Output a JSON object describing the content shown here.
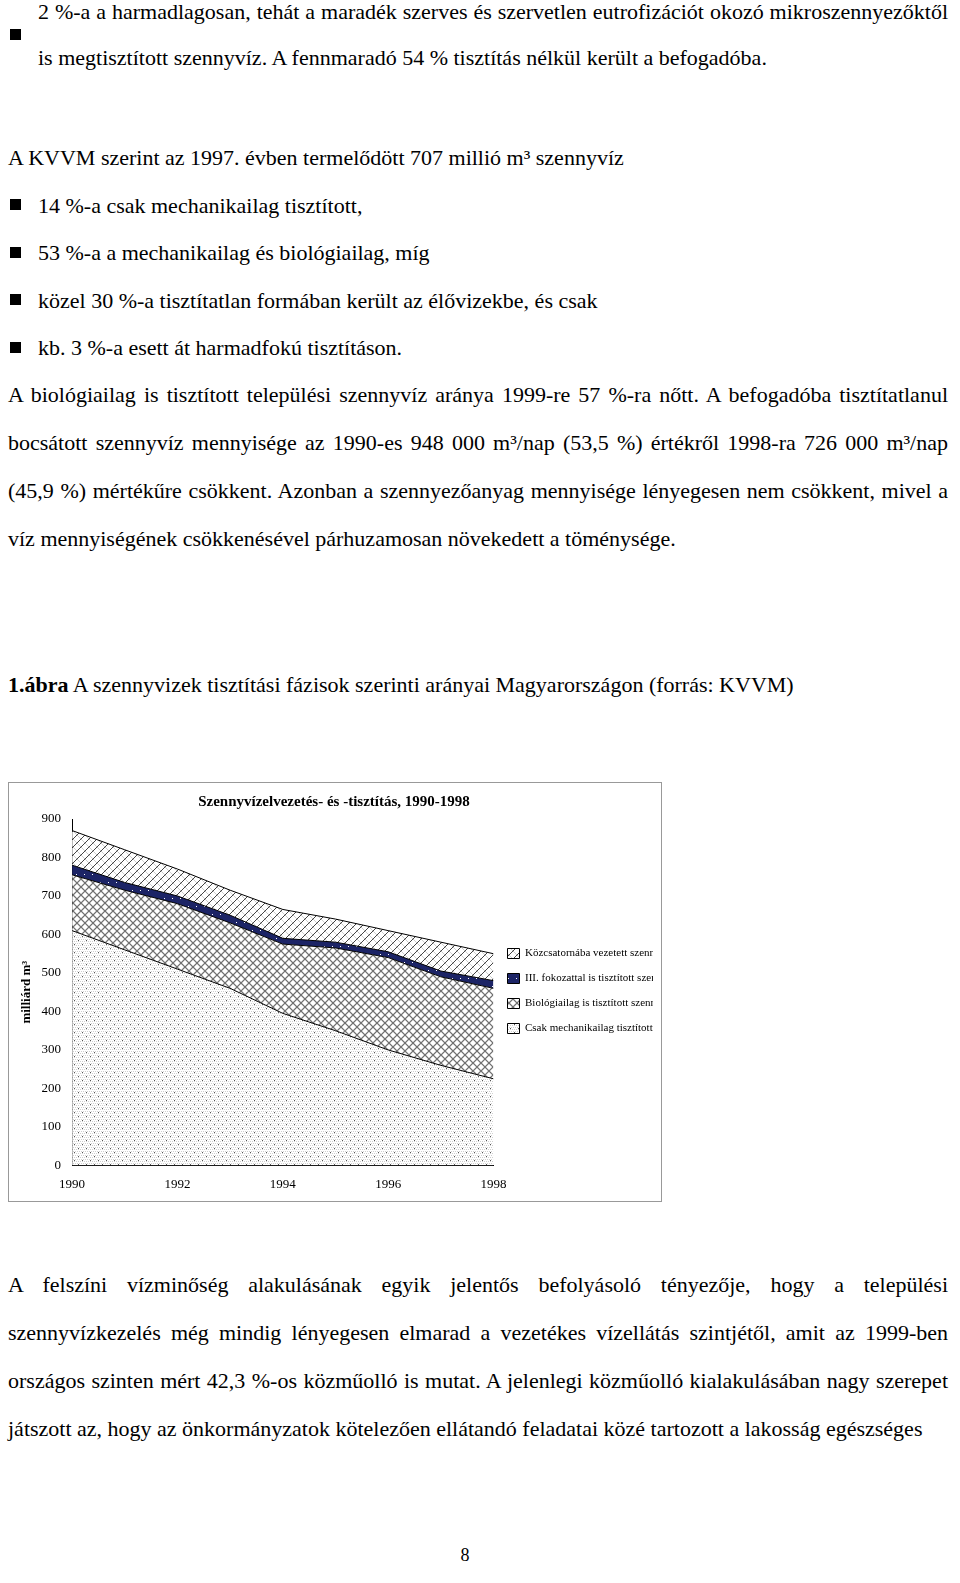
{
  "intro_bullet": "2 %-a a harmadlagosan, tehát a maradék szerves és szervetlen eutrofizációt okozó mikroszennyezőktől is megtisztított szennyvíz. A fennmaradó 54 % tisztítás nélkül került a befogadóba.",
  "kvvm_lead": "A KVVM szerint az 1997. évben termelődött 707 millió m³ szennyvíz",
  "kvvm_bullets": [
    "14 %-a csak mechanikailag tisztított,",
    "53 %-a a mechanikailag és biológiailag, míg",
    "közel 30 %-a tisztítatlan formában került az élővizekbe, és csak",
    "kb. 3 %-a esett át harmadfokú tisztításon."
  ],
  "paragraph_1": "A biológiailag is tisztított települési szennyvíz aránya 1999-re 57 %-ra nőtt. A befogadóba tisztítatlanul bocsátott szennyvíz mennyisége az 1990-es 948 000 m³/nap (53,5 %) értékről 1998-ra 726 000 m³/nap (45,9 %) mértékűre csökkent. Azonban a szennyezőanyag mennyisége lényegesen nem csökkent, mivel a víz mennyiségének csökkenésével párhuzamosan növekedett a töménysége.",
  "figure": {
    "number": "1.ábra",
    "caption": "A szennyvizek tisztítási fázisok szerinti arányai Magyarországon (forrás: KVVM)"
  },
  "chart_data": {
    "type": "area",
    "title": "Szennyvízelvezetés- és -tisztítás, 1990-1998",
    "y_label": "milliárd m³",
    "x": [
      1990,
      1991,
      1992,
      1993,
      1994,
      1995,
      1996,
      1997,
      1998
    ],
    "xlim": [
      1990,
      1998
    ],
    "xticks": [
      1990,
      1992,
      1994,
      1996,
      1998
    ],
    "ylim": [
      0,
      900
    ],
    "yticks": [
      0,
      100,
      200,
      300,
      400,
      500,
      600,
      700,
      800,
      900
    ],
    "stacked": true,
    "grid": false,
    "legend": "right",
    "series": [
      {
        "name": "Csak mechanikailag tisztított szennyvíz",
        "color": "#d0d0d0",
        "values": [
          610,
          560,
          510,
          460,
          395,
          350,
          300,
          260,
          225
        ]
      },
      {
        "name": "Biológiailag is tisztított szennyvíz",
        "color": "#9a9a9a",
        "values": [
          145,
          155,
          170,
          170,
          180,
          215,
          240,
          230,
          235
        ]
      },
      {
        "name": "III. fokozattal is tisztított szennyvíz",
        "color": "#1c2466",
        "values": [
          25,
          20,
          20,
          20,
          15,
          15,
          15,
          15,
          20
        ]
      },
      {
        "name": "Közcsatornába vezetett szennyvíz",
        "color": "#b8b8b8",
        "values": [
          90,
          85,
          70,
          65,
          75,
          60,
          55,
          75,
          70
        ]
      }
    ]
  },
  "paragraph_2": "A felszíni vízminőség alakulásának egyik jelentős befolyásoló tényezője, hogy a települési szennyvízkezelés még mindig lényegesen elmarad a vezetékes vízellátás szintjétől, amit az 1999-ben országos szinten mért 42,3 %-os közműolló is mutat. A jelenlegi közműolló kialakulásában nagy szerepet játszott az, hogy az önkormányzatok kötelezően ellátandó feladatai közé tartozott a lakosság egészséges",
  "page_number": "8"
}
